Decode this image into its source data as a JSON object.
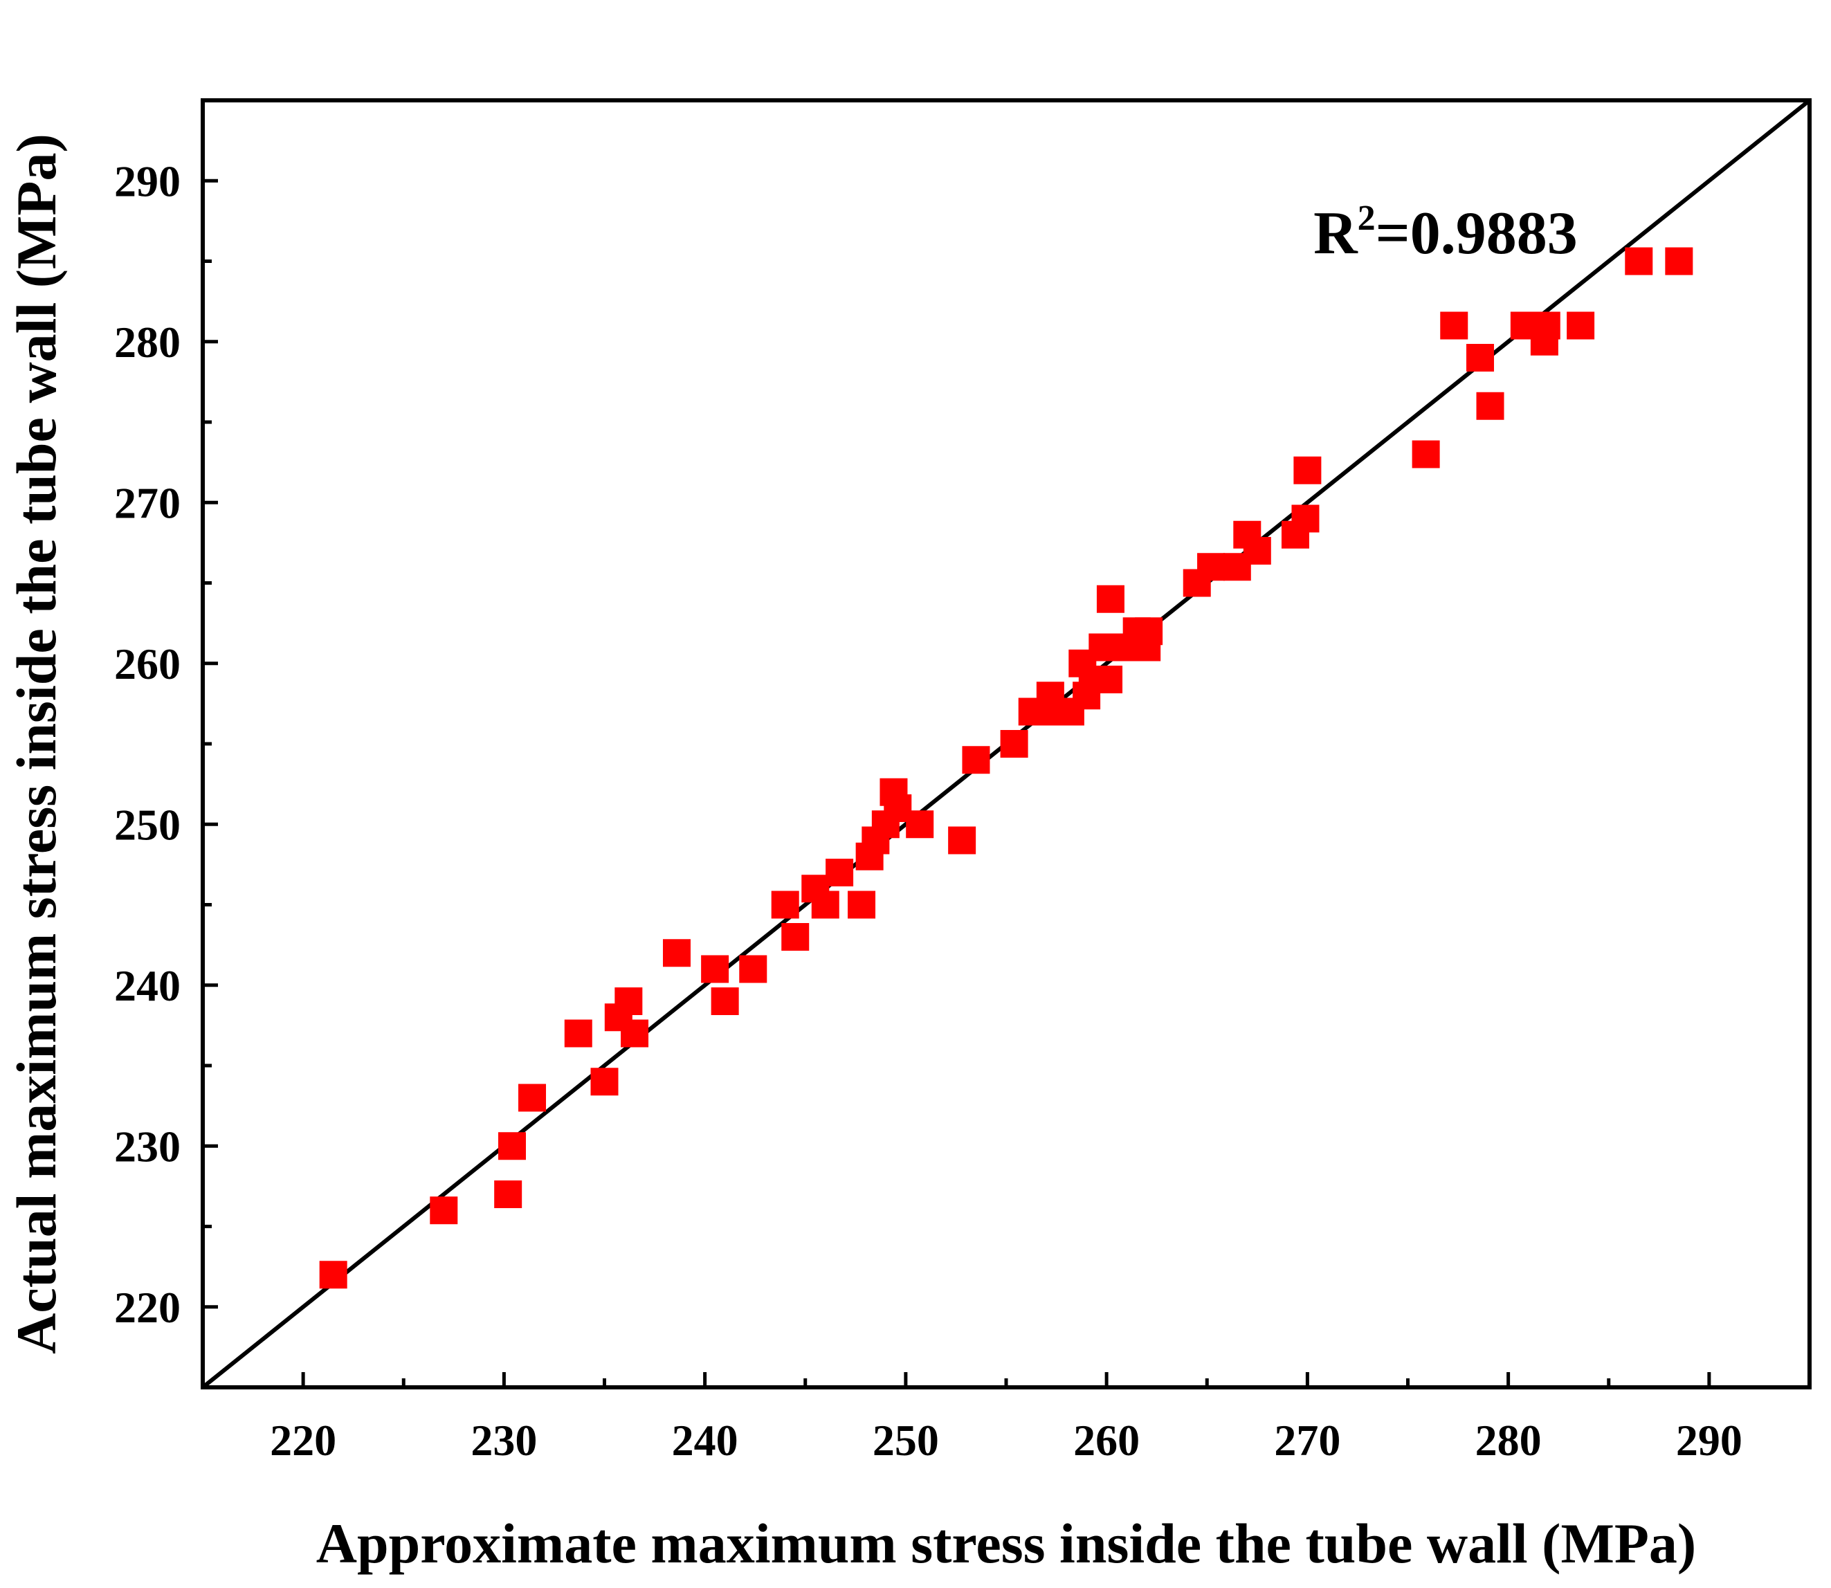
{
  "chart_data": {
    "type": "scatter",
    "title": "",
    "xlabel": "Approximate maximum stress inside the tube wall (MPa)",
    "ylabel": "Actual maximum stress inside the tube wall (MPa)",
    "xlim": [
      215,
      295
    ],
    "ylim": [
      215,
      295
    ],
    "xticks": [
      220,
      230,
      240,
      250,
      260,
      270,
      280,
      290
    ],
    "yticks": [
      220,
      230,
      240,
      250,
      260,
      270,
      280,
      290
    ],
    "tick_labels": {
      "x": [
        "220",
        "230",
        "240",
        "250",
        "260",
        "270",
        "280",
        "290"
      ],
      "y": [
        "220",
        "230",
        "240",
        "250",
        "260",
        "270",
        "280",
        "290"
      ]
    },
    "minor_ticks_per_major": 1,
    "grid": false,
    "legend": "none",
    "marker_color": "#ff0000",
    "line_color": "#000000",
    "reference_line": {
      "from": [
        215,
        215
      ],
      "to": [
        295,
        295
      ]
    },
    "annotation": {
      "base": "R",
      "superscript": "2",
      "text": "=0.9883",
      "at": [
        270.3,
        285.5
      ]
    },
    "series": [
      {
        "name": "data",
        "marker": "square",
        "x": [
          221.5,
          227.0,
          230.2,
          230.4,
          231.4,
          233.7,
          235.0,
          235.7,
          236.2,
          236.5,
          238.6,
          240.5,
          241.0,
          242.4,
          244.0,
          244.5,
          245.5,
          246.0,
          246.7,
          247.8,
          248.2,
          248.5,
          249.0,
          249.4,
          249.6,
          250.7,
          252.8,
          253.5,
          255.4,
          256.3,
          257.2,
          257.6,
          258.2,
          258.8,
          259.0,
          259.3,
          259.8,
          260.1,
          260.2,
          260.7,
          261.5,
          262.0,
          262.1,
          264.5,
          265.2,
          266.5,
          267.0,
          267.5,
          269.4,
          269.9,
          270.0,
          275.9,
          277.3,
          278.6,
          279.1,
          280.8,
          281.8,
          281.9,
          283.6,
          286.5,
          288.5
        ],
        "y": [
          222,
          226,
          227,
          230,
          233,
          237,
          234,
          238,
          239,
          237,
          242,
          241,
          239,
          241,
          245,
          243,
          246,
          245,
          247,
          245,
          248,
          249,
          250,
          252,
          251,
          250,
          249,
          254,
          255,
          257,
          258,
          257,
          257,
          260,
          258,
          259,
          261,
          259,
          264,
          261,
          262,
          261,
          262,
          265,
          266,
          266,
          268,
          267,
          268,
          269,
          272,
          273,
          281,
          279,
          276,
          281,
          280,
          281,
          281,
          285,
          285
        ]
      }
    ]
  }
}
